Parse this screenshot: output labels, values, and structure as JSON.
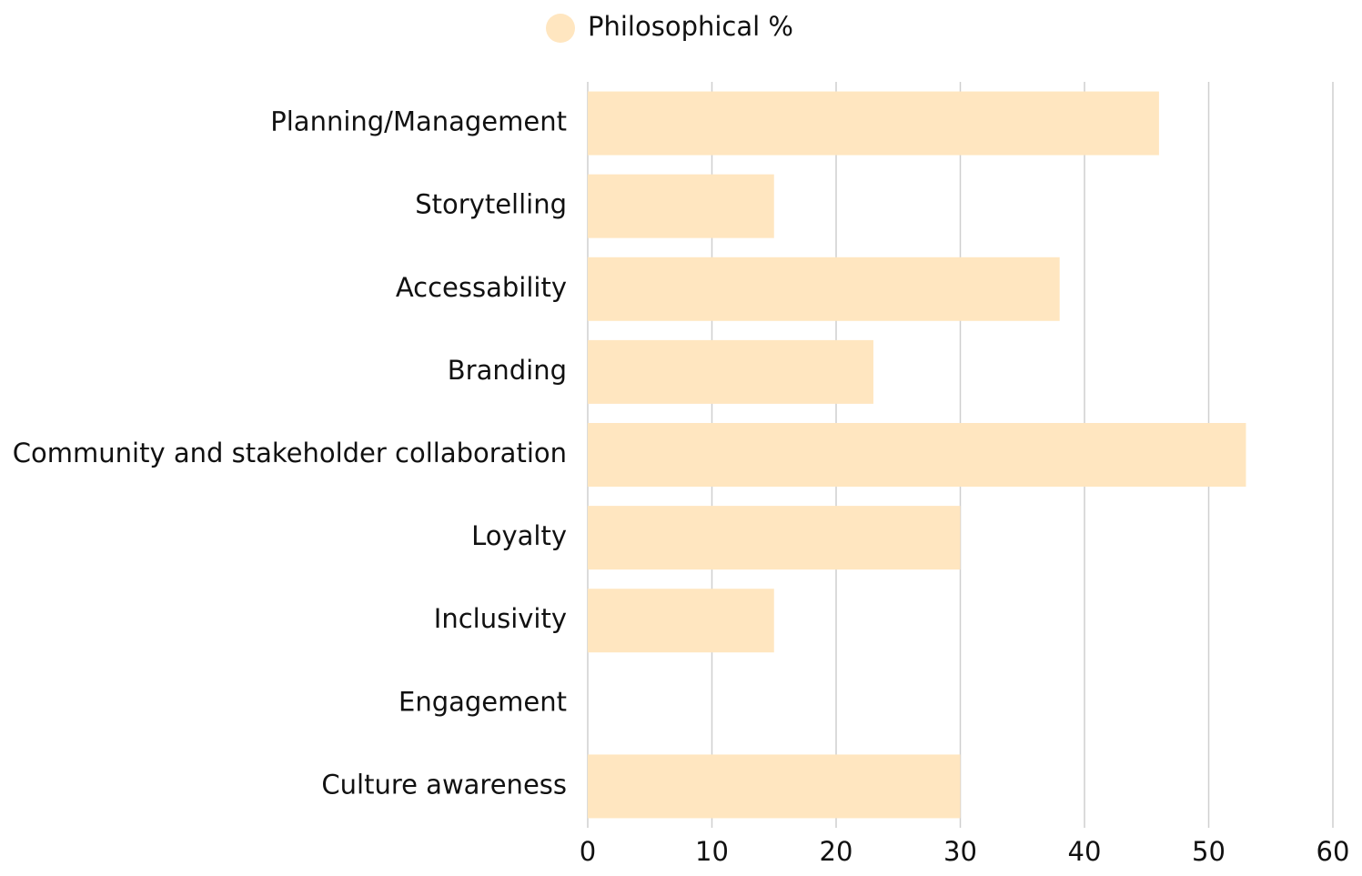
{
  "chart_data": {
    "type": "bar",
    "horizontal": true,
    "categories": [
      "Planning/Management",
      "Storytelling",
      "Accessability",
      "Branding",
      "Community and stakeholder collaboration",
      "Loyalty",
      "Inclusivity",
      "Engagement",
      "Culture awareness"
    ],
    "series": [
      {
        "name": "Philosophical %",
        "color": "#ffe6c0",
        "values": [
          46,
          15,
          38,
          23,
          53,
          30,
          15,
          0,
          30
        ]
      }
    ],
    "xlim": [
      0,
      60
    ],
    "xticks": [
      0,
      10,
      20,
      30,
      40,
      50,
      60
    ],
    "grid": true,
    "legend": "top"
  }
}
